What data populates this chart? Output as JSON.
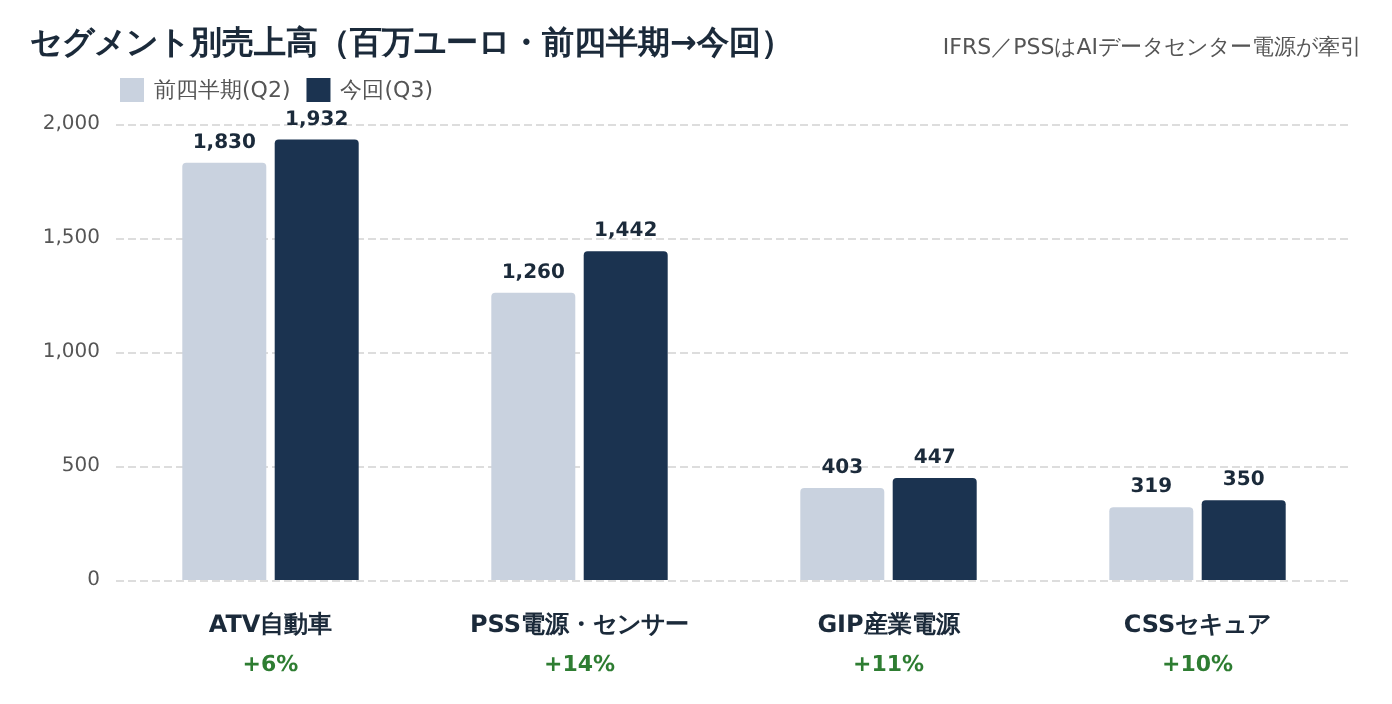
{
  "chart_data": {
    "type": "bar",
    "title": "セグメント別売上高（百万ユーロ・前四半期→今回）",
    "subtitle": "IFRS／PSSはAIデータセンター電源が牽引",
    "categories": [
      "ATV自動車",
      "PSS電源・センサー",
      "GIP産業電源",
      "CSSセキュア"
    ],
    "series": [
      {
        "name": "前四半期(Q2)",
        "color": "#c9d2df",
        "values": [
          1830,
          1260,
          403,
          319
        ],
        "value_labels": [
          "1,830",
          "1,260",
          "403",
          "319"
        ]
      },
      {
        "name": "今回(Q3)",
        "color": "#1b3350",
        "values": [
          1932,
          1442,
          447,
          350
        ],
        "value_labels": [
          "1,932",
          "1,442",
          "447",
          "350"
        ]
      }
    ],
    "annotations": [
      "+6%",
      "+14%",
      "+11%",
      "+10%"
    ],
    "ylim": [
      0,
      2000
    ],
    "yticks": [
      0,
      500,
      {
        "value": 1000,
        "label": "1,000"
      },
      {
        "value": 1500,
        "label": "1,500"
      },
      {
        "value": 2000,
        "label": "2,000"
      }
    ],
    "grid": "y",
    "legend": "top left"
  }
}
